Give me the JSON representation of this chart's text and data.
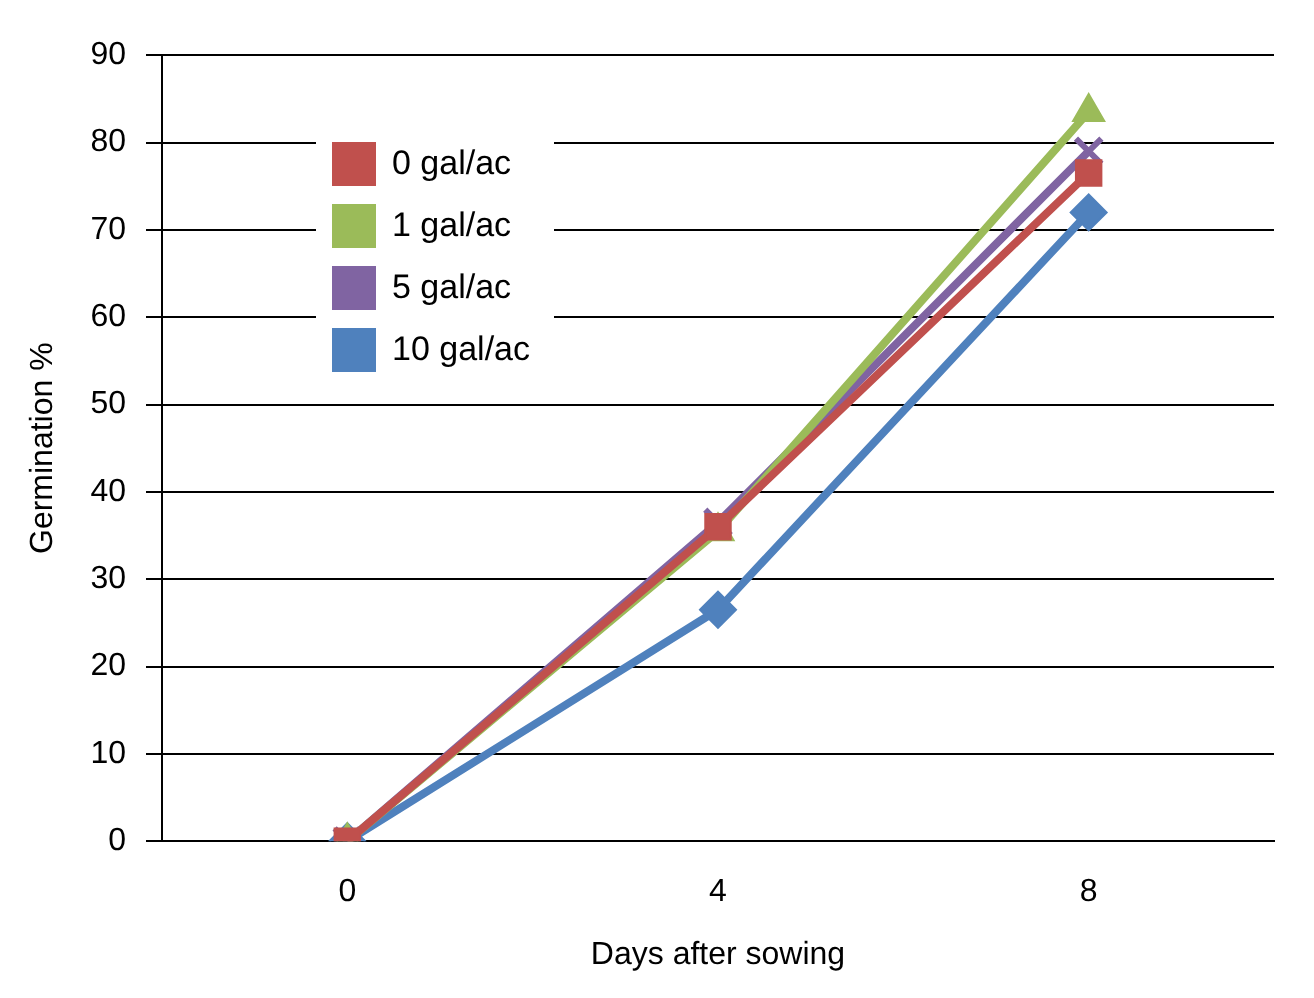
{
  "chart_data": {
    "type": "line",
    "xlabel": "Days after sowing",
    "ylabel": "Germination %",
    "categories": [
      "0",
      "4",
      "8"
    ],
    "series": [
      {
        "name": "0 gal/ac",
        "color": "#c0504d",
        "marker": "square",
        "values": [
          0,
          36,
          76.5
        ]
      },
      {
        "name": "1 gal/ac",
        "color": "#9bbb59",
        "marker": "triangle",
        "values": [
          0,
          35.5,
          83.5
        ]
      },
      {
        "name": "5 gal/ac",
        "color": "#8064a2",
        "marker": "cross",
        "values": [
          0,
          36.5,
          79
        ]
      },
      {
        "name": "10 gal/ac",
        "color": "#4f81bd",
        "marker": "diamond",
        "values": [
          0,
          26.5,
          72
        ]
      }
    ],
    "ylim": [
      0,
      90
    ],
    "yticks": [
      0,
      10,
      20,
      30,
      40,
      50,
      60,
      70,
      80,
      90
    ],
    "grid": "y",
    "legend": "top left"
  }
}
